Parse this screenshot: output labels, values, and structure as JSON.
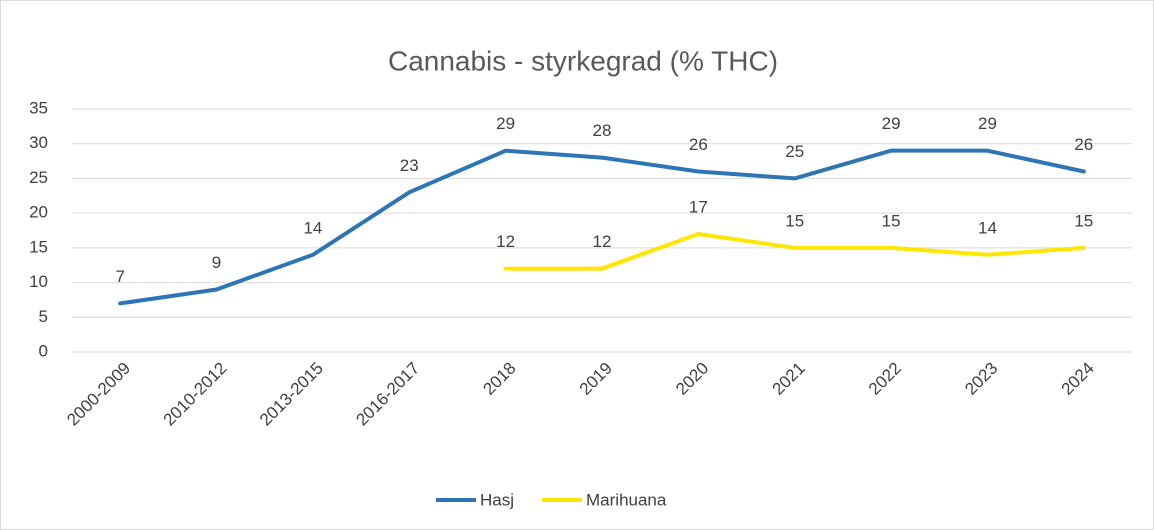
{
  "chart_data": {
    "type": "line",
    "title": "Cannabis - styrkegrad (% THC)",
    "categories": [
      "2000-2009",
      "2010-2012",
      "2013-2015",
      "2016-2017",
      "2018",
      "2019",
      "2020",
      "2021",
      "2022",
      "2023",
      "2024"
    ],
    "series": [
      {
        "name": "Hasj",
        "color": "#2e75b6",
        "values": [
          7,
          9,
          14,
          23,
          29,
          28,
          26,
          25,
          29,
          29,
          26
        ]
      },
      {
        "name": "Marihuana",
        "color": "#ffe600",
        "values": [
          null,
          null,
          null,
          null,
          12,
          12,
          17,
          15,
          15,
          14,
          15
        ]
      }
    ],
    "ylim": [
      0,
      35
    ],
    "yticks": [
      0,
      5,
      10,
      15,
      20,
      25,
      30,
      35
    ],
    "grid": true,
    "legend": "bottom"
  }
}
